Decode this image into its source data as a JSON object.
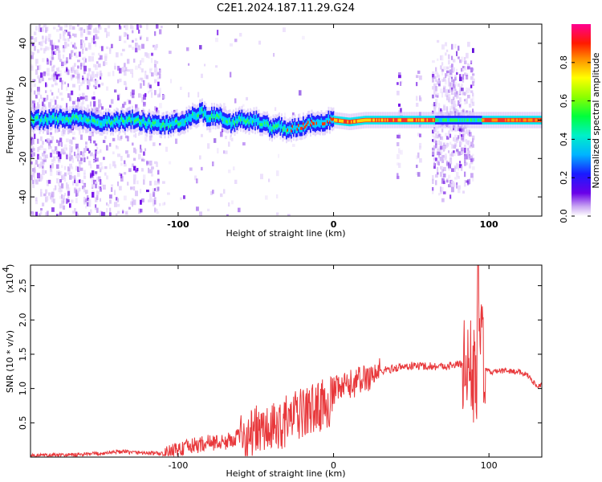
{
  "title": "C2E1.2024.187.11.29.G24",
  "chart_data": [
    {
      "type": "heatmap",
      "xlabel": "Height of straight line (km)",
      "ylabel": "Frequency (Hz)",
      "xlim": [
        -195,
        134
      ],
      "ylim": [
        -50,
        50
      ],
      "x_ticks": [
        "-100",
        "0",
        "100"
      ],
      "x_tick_values": [
        -100,
        0,
        100
      ],
      "y_ticks": [
        "-40",
        "-20",
        "0",
        "20",
        "40"
      ],
      "y_tick_values": [
        -40,
        -20,
        0,
        20,
        40
      ],
      "colorbar": {
        "label": "Normalized spectral amplitude",
        "ticks": [
          "0.0",
          "0.2",
          "0.4",
          "0.6",
          "0.8"
        ],
        "tick_values": [
          0.0,
          0.2,
          0.4,
          0.6,
          0.8
        ],
        "range": [
          0,
          1
        ]
      },
      "center_line_freq": [
        [
          -195,
          0
        ],
        [
          -170,
          1
        ],
        [
          -150,
          -1
        ],
        [
          -130,
          0
        ],
        [
          -110,
          -3
        ],
        [
          -100,
          -1
        ],
        [
          -90,
          2
        ],
        [
          -85,
          4
        ],
        [
          -80,
          1
        ],
        [
          -75,
          3
        ],
        [
          -70,
          -1
        ],
        [
          -65,
          -2
        ],
        [
          -60,
          1
        ],
        [
          -55,
          -1
        ],
        [
          -50,
          0
        ],
        [
          -45,
          -2
        ],
        [
          -40,
          -4
        ],
        [
          -35,
          -3
        ],
        [
          -30,
          -5
        ],
        [
          -20,
          -3
        ],
        [
          -10,
          -1
        ],
        [
          0,
          0
        ],
        [
          10,
          -1
        ],
        [
          20,
          0
        ],
        [
          40,
          0
        ],
        [
          60,
          0
        ],
        [
          80,
          0
        ],
        [
          90,
          0
        ],
        [
          100,
          0
        ],
        [
          134,
          0
        ]
      ]
    },
    {
      "type": "line",
      "xlabel": "Height of straight line (km)",
      "ylabel": "SNR (10 * v/v)",
      "scale_label": "(x10",
      "scale_exponent": "4",
      "xlim": [
        -195,
        134
      ],
      "ylim": [
        0.0,
        2.8
      ],
      "x_ticks": [
        "-100",
        "0",
        "100"
      ],
      "x_tick_values": [
        -100,
        0,
        100
      ],
      "y_ticks": [
        "0.5",
        "1.0",
        "1.5",
        "2.0",
        "2.5"
      ],
      "y_tick_values": [
        0.5,
        1.0,
        1.5,
        2.0,
        2.5
      ],
      "color": "#e8383b",
      "series": [
        {
          "x": [
            -195,
            -170,
            -150,
            -140,
            -120,
            -110,
            -100,
            -90,
            -80,
            -70,
            -60,
            -50,
            -40,
            -30,
            -20,
            -10,
            0,
            10,
            20,
            30,
            40,
            50,
            60,
            70,
            80,
            85,
            88,
            90,
            92,
            93,
            95,
            97,
            100,
            110,
            120,
            125,
            130,
            134
          ],
          "y": [
            0.02,
            0.03,
            0.05,
            0.08,
            0.06,
            0.05,
            0.15,
            0.2,
            0.25,
            0.25,
            0.35,
            0.5,
            0.5,
            0.65,
            0.75,
            0.85,
            0.95,
            1.05,
            1.15,
            1.25,
            1.3,
            1.33,
            1.33,
            1.32,
            1.35,
            1.36,
            1.3,
            1.2,
            1.0,
            2.8,
            1.6,
            1.3,
            1.24,
            1.26,
            1.24,
            1.2,
            1.05,
            1.05
          ]
        }
      ]
    }
  ]
}
